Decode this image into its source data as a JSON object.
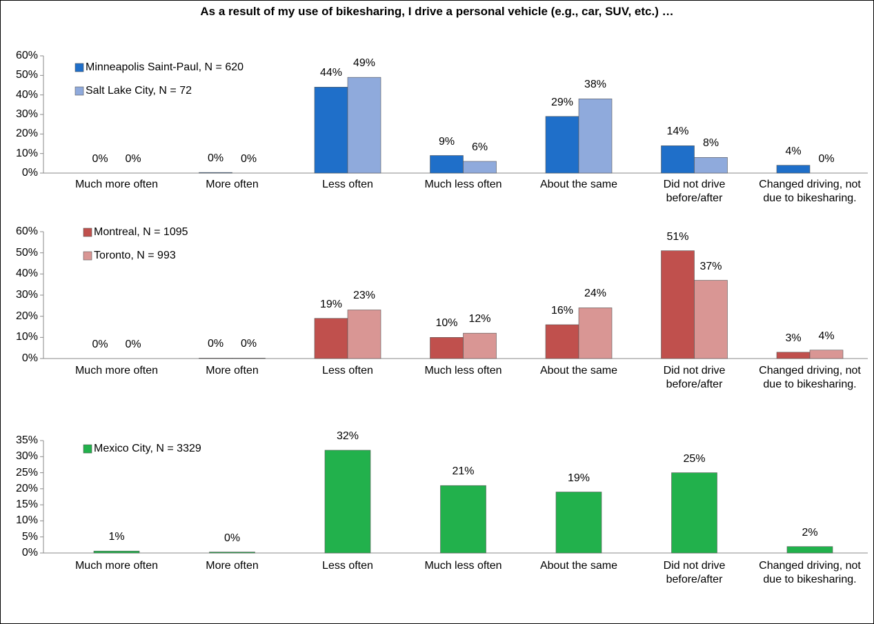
{
  "title": "As a result of my use of bikesharing, I drive a personal vehicle (e.g., car, SUV, etc.) …",
  "chart_data": [
    {
      "type": "bar",
      "categories": [
        "Much more often",
        "More often",
        "Less often",
        "Much less often",
        "About the same",
        "Did not drive before/after",
        "Changed driving, not due to bikesharing."
      ],
      "series": [
        {
          "name": "Minneapolis Saint-Paul, N = 620",
          "color": "#1f6fc9",
          "values": [
            0,
            0.3,
            44,
            9,
            29,
            14,
            4
          ],
          "value_labels": [
            "0%",
            "0%",
            "44%",
            "9%",
            "29%",
            "14%",
            "4%"
          ]
        },
        {
          "name": "Salt Lake City, N = 72",
          "color": "#8faadc",
          "values": [
            0,
            0,
            49,
            6,
            38,
            8,
            0
          ],
          "value_labels": [
            "0%",
            "0%",
            "49%",
            "6%",
            "38%",
            "8%",
            "0%"
          ]
        }
      ],
      "ylim": [
        0,
        60
      ],
      "yticks": [
        {
          "value": 0,
          "label": "0%"
        },
        {
          "value": 10,
          "label": "10%"
        },
        {
          "value": 20,
          "label": "20%"
        },
        {
          "value": 30,
          "label": "30%"
        },
        {
          "value": 40,
          "label": "40%"
        },
        {
          "value": 50,
          "label": "50%"
        },
        {
          "value": 60,
          "label": "60%"
        }
      ],
      "grid": false,
      "legend": "upper left"
    },
    {
      "type": "bar",
      "categories": [
        "Much more often",
        "More often",
        "Less often",
        "Much less often",
        "About the same",
        "Did not drive before/after",
        "Changed driving, not due to bikesharing."
      ],
      "series": [
        {
          "name": "Montreal, N = 1095",
          "color": "#c0504d",
          "values": [
            0,
            0.2,
            19,
            10,
            16,
            51,
            3
          ],
          "value_labels": [
            "0%",
            "0%",
            "19%",
            "10%",
            "16%",
            "51%",
            "3%"
          ]
        },
        {
          "name": "Toronto, N = 993",
          "color": "#d99694",
          "values": [
            0,
            0.2,
            23,
            12,
            24,
            37,
            4
          ],
          "value_labels": [
            "0%",
            "0%",
            "23%",
            "12%",
            "24%",
            "37%",
            "4%"
          ]
        }
      ],
      "ylim": [
        0,
        60
      ],
      "yticks": [
        {
          "value": 0,
          "label": "0%"
        },
        {
          "value": 10,
          "label": "10%"
        },
        {
          "value": 20,
          "label": "20%"
        },
        {
          "value": 30,
          "label": "30%"
        },
        {
          "value": 40,
          "label": "40%"
        },
        {
          "value": 50,
          "label": "50%"
        },
        {
          "value": 60,
          "label": "60%"
        }
      ],
      "grid": false,
      "legend": "upper left"
    },
    {
      "type": "bar",
      "categories": [
        "Much more often",
        "More often",
        "Less often",
        "Much less often",
        "About the same",
        "Did not drive before/after",
        "Changed driving, not due to bikesharing."
      ],
      "series": [
        {
          "name": "Mexico City, N = 3329",
          "color": "#22b14c",
          "values": [
            0.6,
            0.3,
            32,
            21,
            19,
            25,
            2
          ],
          "value_labels": [
            "1%",
            "0%",
            "32%",
            "21%",
            "19%",
            "25%",
            "2%"
          ]
        }
      ],
      "ylim": [
        0,
        35
      ],
      "yticks": [
        {
          "value": 0,
          "label": "0%"
        },
        {
          "value": 5,
          "label": "5%"
        },
        {
          "value": 10,
          "label": "10%"
        },
        {
          "value": 15,
          "label": "15%"
        },
        {
          "value": 20,
          "label": "20%"
        },
        {
          "value": 25,
          "label": "25%"
        },
        {
          "value": 30,
          "label": "30%"
        },
        {
          "value": 35,
          "label": "35%"
        }
      ],
      "grid": false,
      "legend": "upper left"
    }
  ]
}
